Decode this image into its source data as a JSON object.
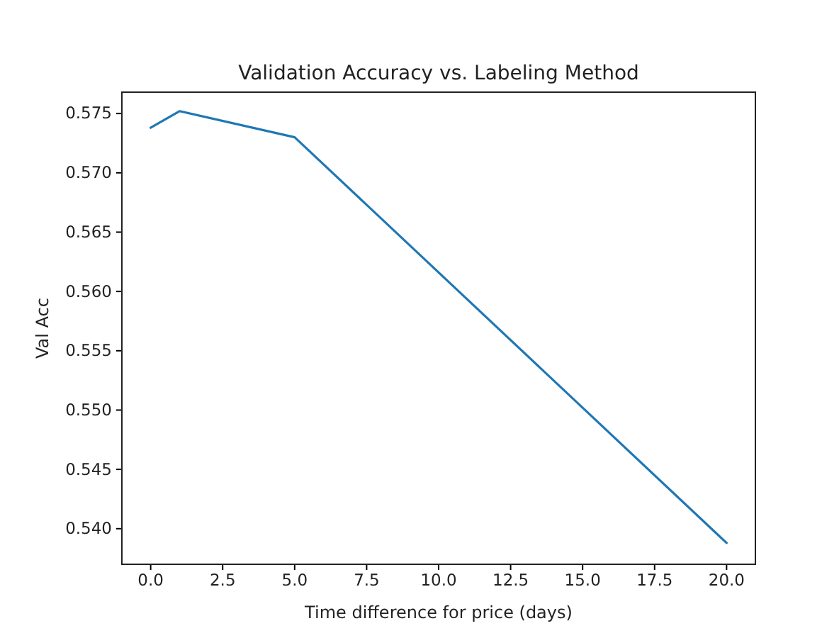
{
  "chart_data": {
    "type": "line",
    "title": "Validation Accuracy vs. Labeling Method",
    "xlabel": "Time difference for price (days)",
    "ylabel": "Val Acc",
    "x": [
      0,
      1,
      5,
      20
    ],
    "series": [
      {
        "color": "#1f77b4",
        "values": [
          0.5738,
          0.5752,
          0.573,
          0.5388
        ]
      }
    ],
    "xlim": [
      -1,
      21
    ],
    "xticks": [
      {
        "value": 0,
        "label": "0.0"
      },
      {
        "value": 2.5,
        "label": "2.5"
      },
      {
        "value": 5,
        "label": "5.0"
      },
      {
        "value": 7.5,
        "label": "7.5"
      },
      {
        "value": 10,
        "label": "10.0"
      },
      {
        "value": 12.5,
        "label": "12.5"
      },
      {
        "value": 15,
        "label": "15.0"
      },
      {
        "value": 17.5,
        "label": "17.5"
      },
      {
        "value": 20,
        "label": "20.0"
      }
    ],
    "ylim": [
      0.537,
      0.5768
    ],
    "yticks": [
      {
        "value": 0.54,
        "label": "0.540"
      },
      {
        "value": 0.545,
        "label": "0.545"
      },
      {
        "value": 0.55,
        "label": "0.550"
      },
      {
        "value": 0.555,
        "label": "0.555"
      },
      {
        "value": 0.56,
        "label": "0.560"
      },
      {
        "value": 0.565,
        "label": "0.565"
      },
      {
        "value": 0.57,
        "label": "0.570"
      },
      {
        "value": 0.575,
        "label": "0.575"
      }
    ],
    "grid": false
  }
}
